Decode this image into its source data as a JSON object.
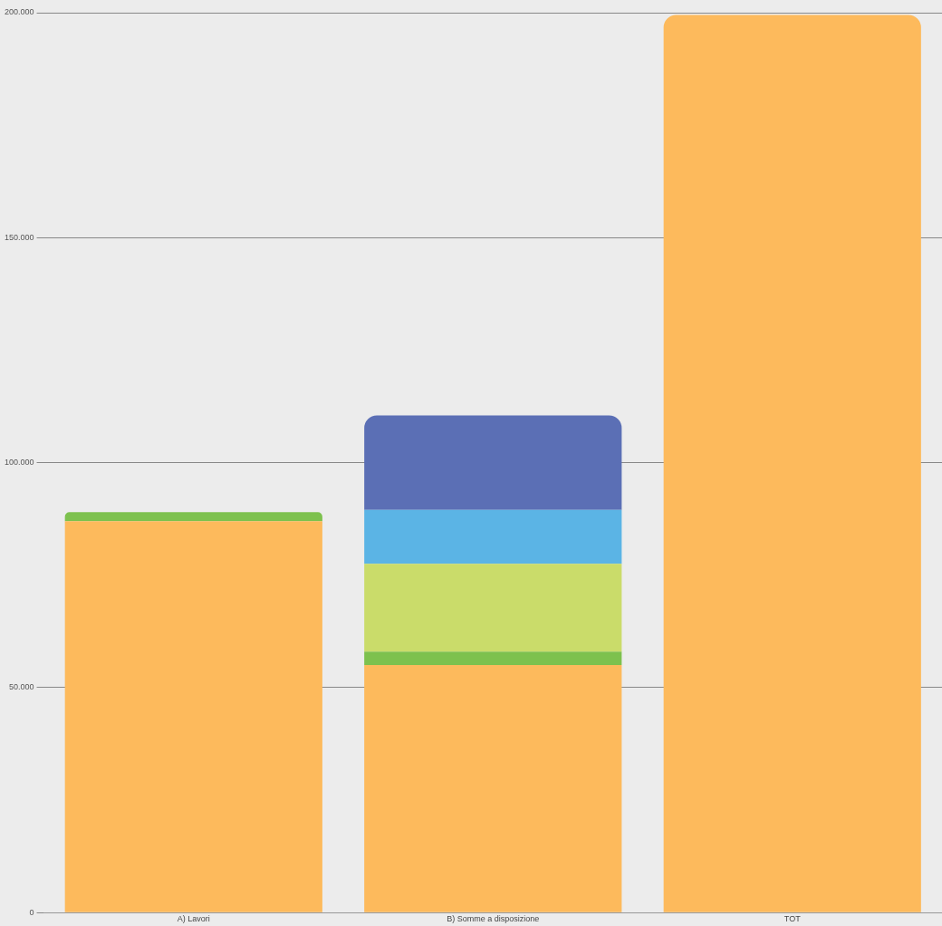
{
  "chart_data": {
    "type": "bar",
    "stacked": true,
    "categories": [
      "A) Lavori",
      "B) Somme a disposizione",
      "TOT"
    ],
    "series": [
      {
        "color": "#fdba5c",
        "values": [
          87000,
          55000,
          199500
        ]
      },
      {
        "color": "#7dc14e",
        "values": [
          2000,
          3000,
          null
        ]
      },
      {
        "color": "#cadc6a",
        "values": [
          null,
          19500,
          null
        ]
      },
      {
        "color": "#5bb4e5",
        "values": [
          null,
          12000,
          null
        ]
      },
      {
        "color": "#5b6fb5",
        "values": [
          null,
          21000,
          null
        ]
      }
    ],
    "ylim": [
      0,
      200000
    ],
    "yticks": [
      {
        "value": 0,
        "label": "0"
      },
      {
        "value": 50000,
        "label": "50.000"
      },
      {
        "value": 100000,
        "label": "100.000"
      },
      {
        "value": 150000,
        "label": "150.000"
      },
      {
        "value": 200000,
        "label": "200.000"
      }
    ],
    "grid": "y",
    "legend": false
  }
}
